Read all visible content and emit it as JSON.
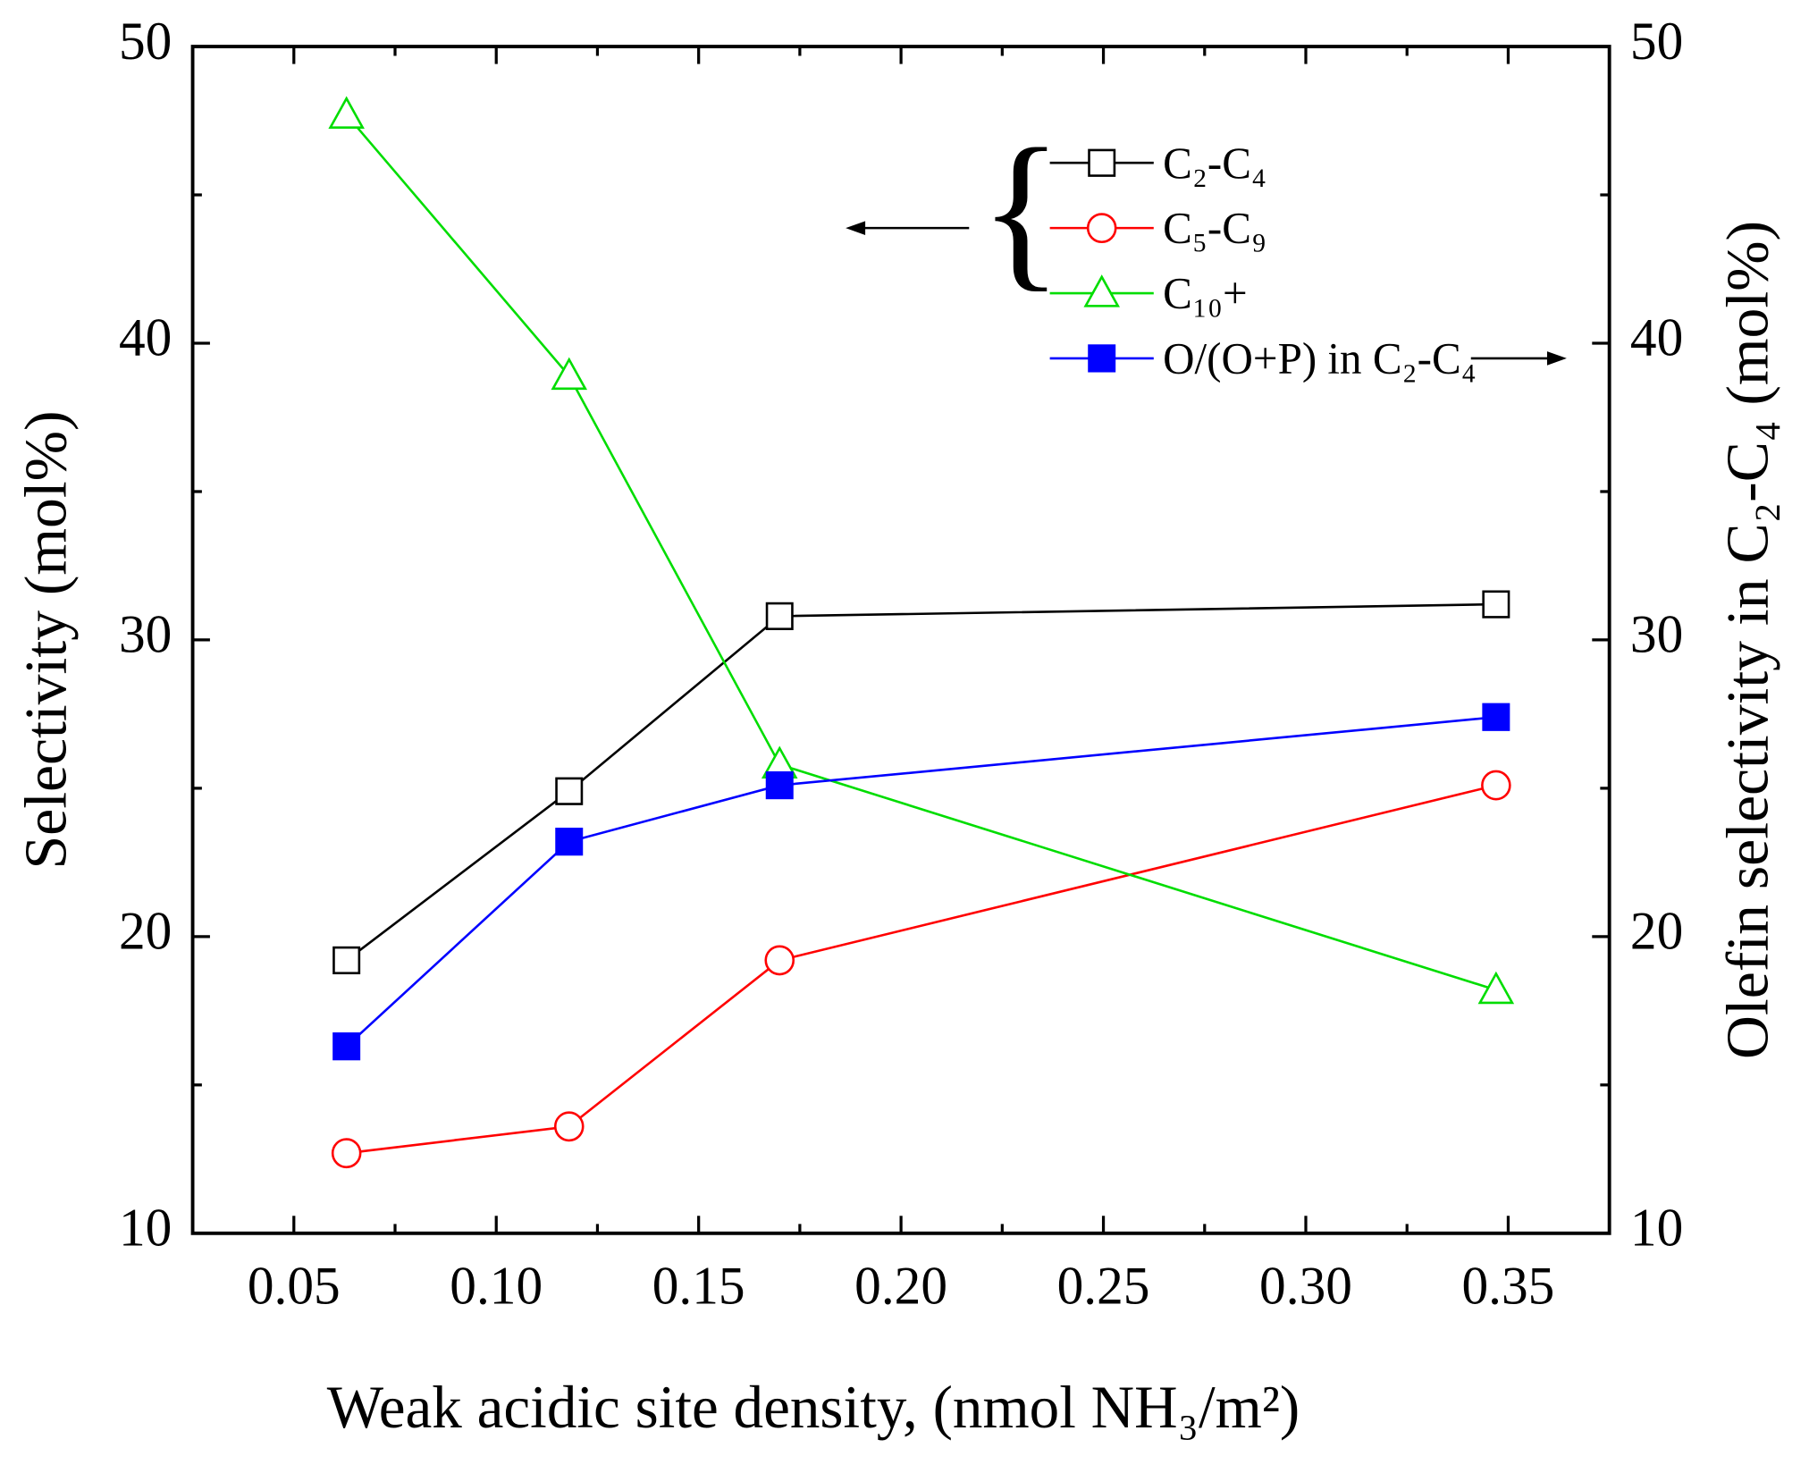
{
  "chart_data": {
    "type": "line",
    "x_label": "Weak acidic site density, (nmol NH₃/m²)",
    "y_label": "Selectivity (mol%)",
    "y2_label": "Olefin selectivity in C₂-C₄ (mol%)",
    "x": [
      0.063,
      0.118,
      0.17,
      0.347
    ],
    "xlim": [
      0.025,
      0.375
    ],
    "xticks": [
      0.05,
      {
        "value": 0.1,
        "label": "0.10"
      },
      0.15,
      {
        "value": 0.2,
        "label": "0.20"
      },
      0.25,
      {
        "value": 0.3,
        "label": "0.30"
      },
      0.35
    ],
    "ylim": [
      10,
      50
    ],
    "yticks": [
      10,
      20,
      30,
      40,
      50
    ],
    "y2lim": [
      10,
      50
    ],
    "y2ticks": [
      10,
      20,
      30,
      40,
      50
    ],
    "series": [
      {
        "name": "C₂-C₄",
        "color": "#000000",
        "marker": "open-square",
        "values": [
          19.2,
          24.9,
          30.8,
          31.2
        ]
      },
      {
        "name": "C₅-C₉",
        "color": "#ff0000",
        "marker": "open-circle",
        "values": [
          12.7,
          13.6,
          19.2,
          25.1
        ]
      },
      {
        "name": "C₁₀+",
        "color": "#00dd00",
        "marker": "open-triangle",
        "values": [
          47.7,
          38.9,
          25.8,
          18.2
        ]
      },
      {
        "name": "O/(O+P) in C₂-C₄",
        "color": "#0000ff",
        "marker": "filled-square",
        "axis": "y2",
        "values": [
          16.3,
          23.2,
          25.1,
          27.4
        ]
      }
    ]
  }
}
